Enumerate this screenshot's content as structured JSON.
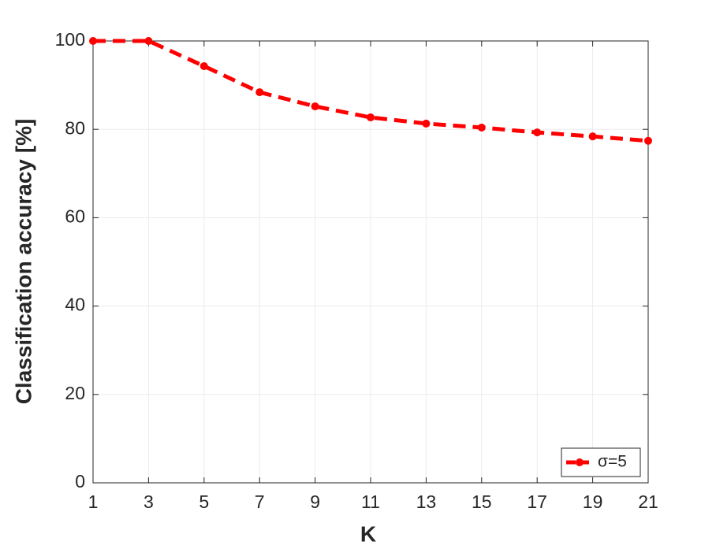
{
  "chart_data": {
    "type": "line",
    "xlabel": "K",
    "ylabel": "Classification accuracy [%]",
    "x": [
      1,
      3,
      5,
      7,
      9,
      11,
      13,
      15,
      17,
      19,
      21
    ],
    "series": [
      {
        "name": "σ=5",
        "color": "#ff0000",
        "values": [
          100,
          100,
          94.3,
          88.4,
          85.2,
          82.7,
          81.3,
          80.4,
          79.3,
          78.4,
          77.4
        ]
      }
    ],
    "xlim": [
      1,
      21
    ],
    "xticks": [
      1,
      3,
      5,
      7,
      9,
      11,
      13,
      15,
      17,
      19,
      21
    ],
    "ylim": [
      0,
      100
    ],
    "yticks": [
      0,
      20,
      40,
      60,
      80,
      100
    ],
    "grid": true,
    "legend": "lower right"
  }
}
